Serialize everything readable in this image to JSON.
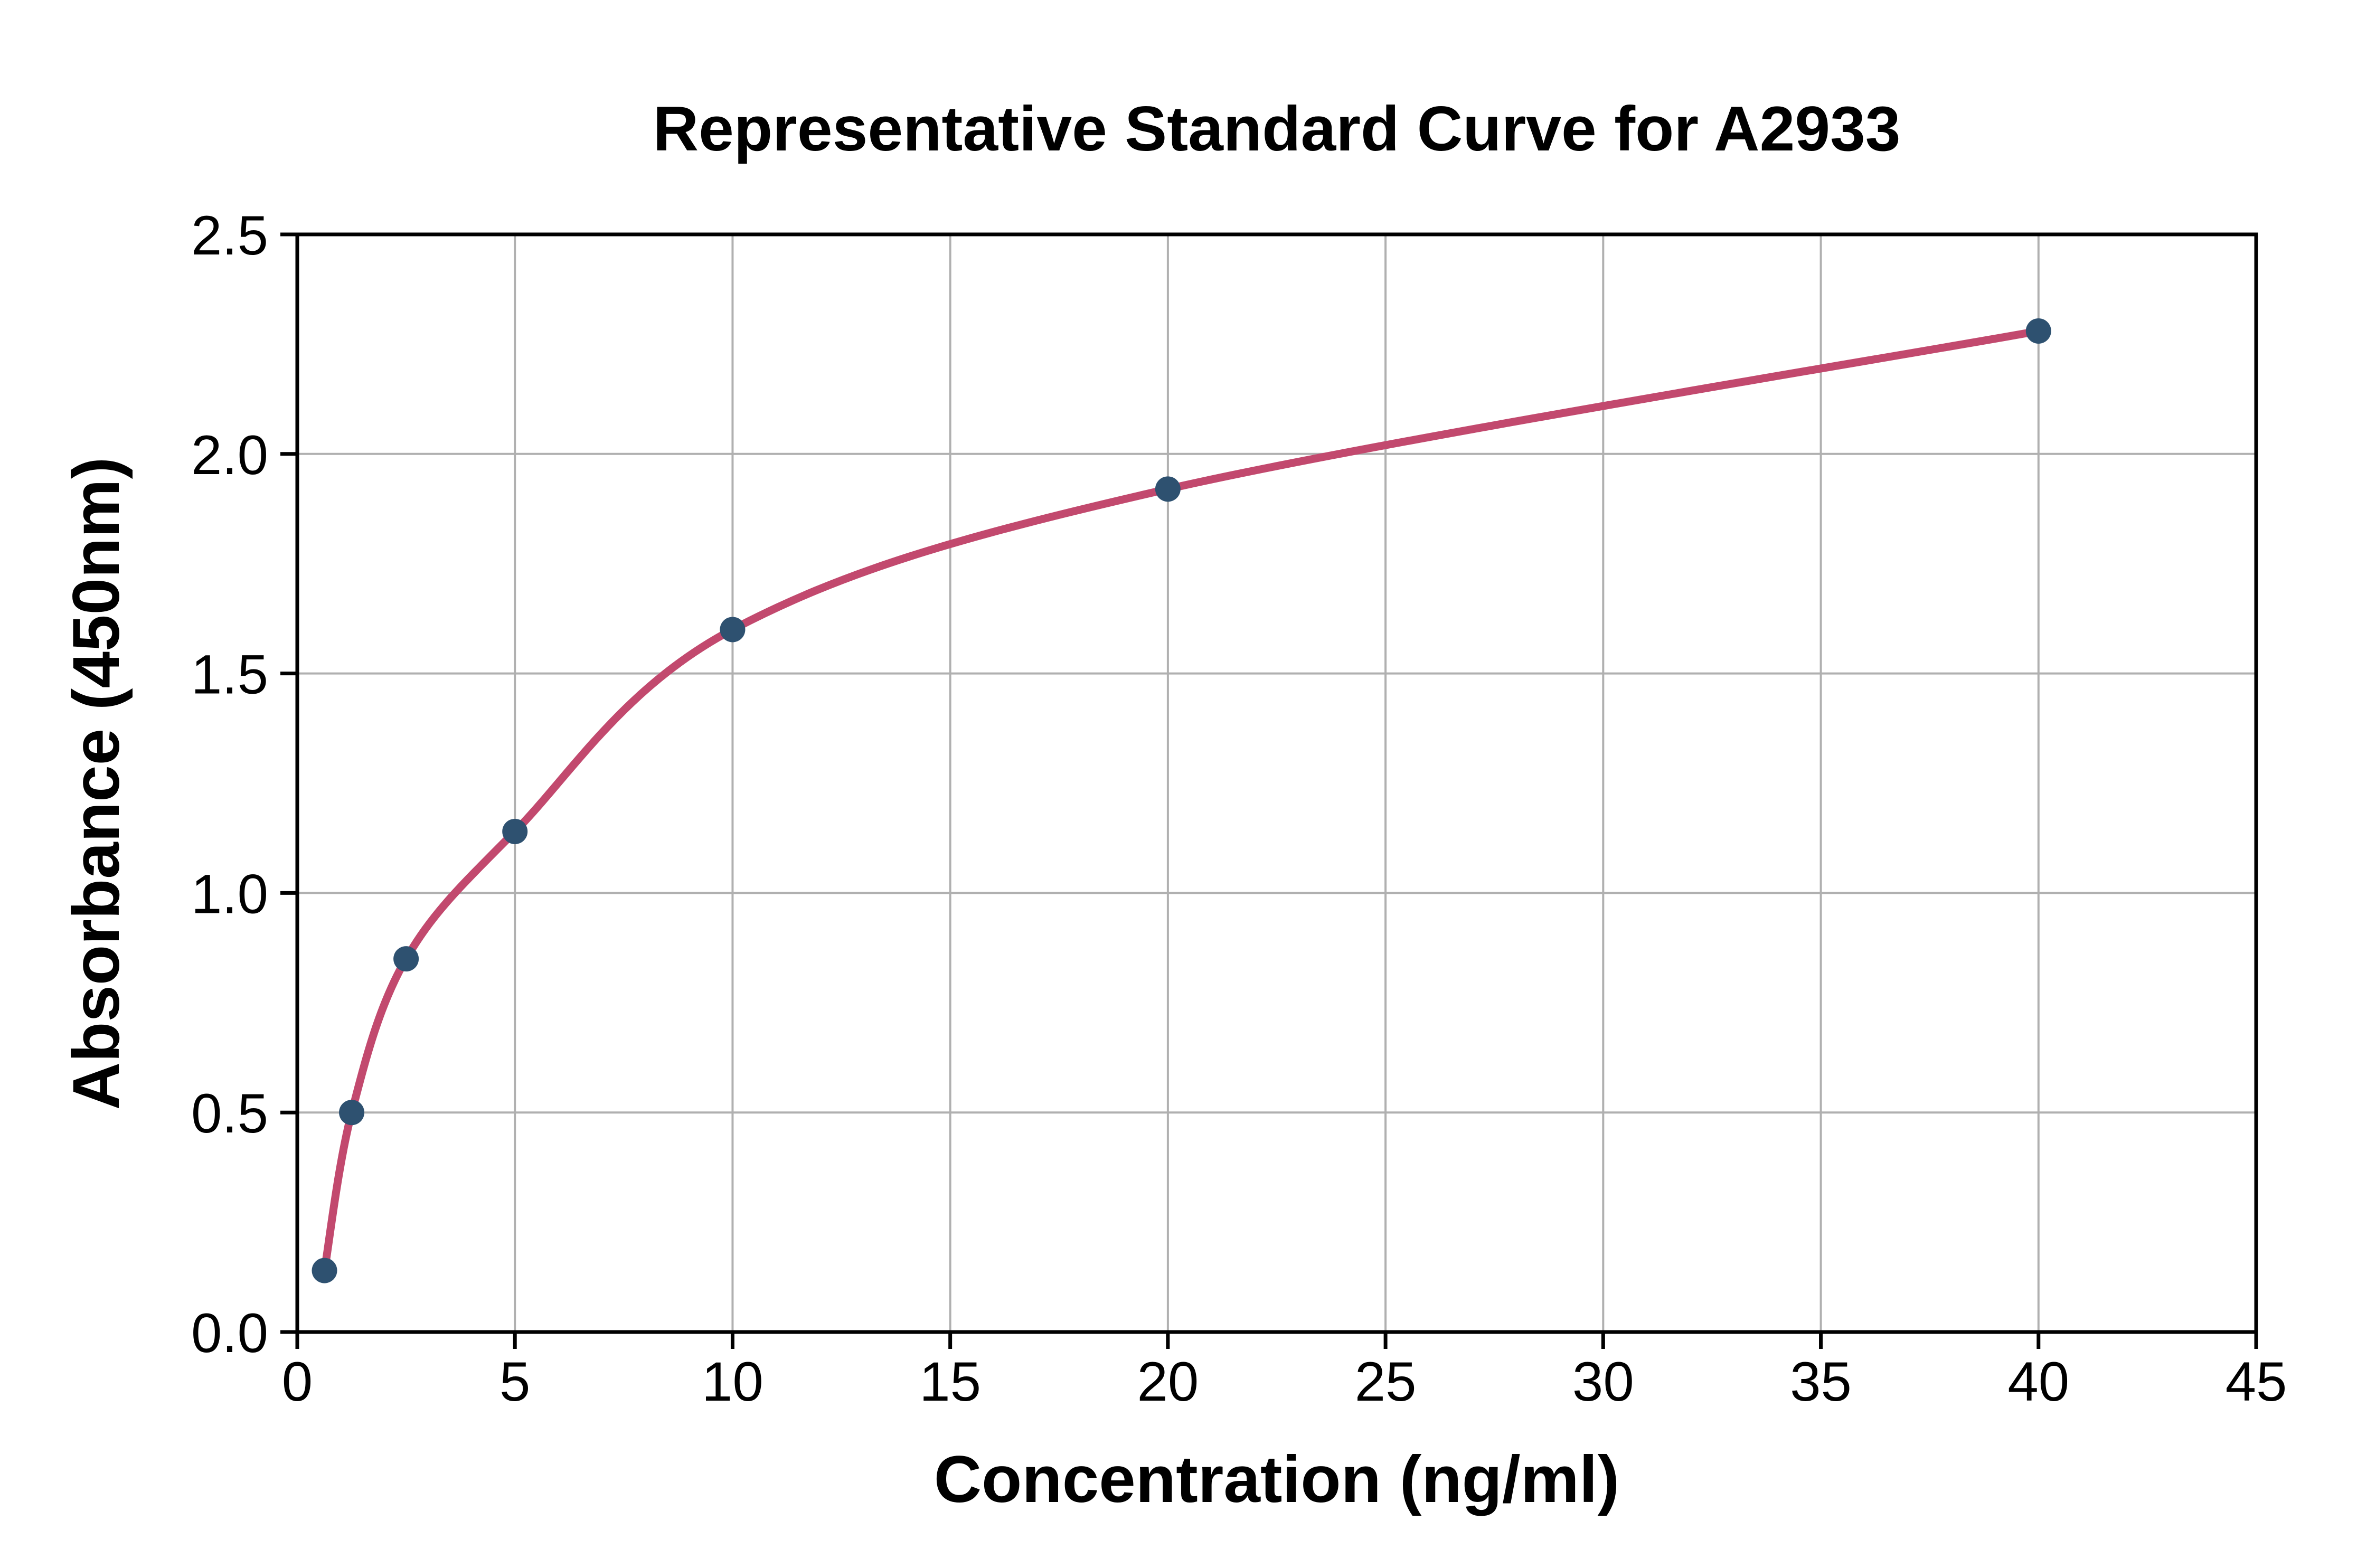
{
  "page": {
    "background_color": "#ffffff"
  },
  "chart_data": {
    "type": "scatter",
    "title": "Representative Standard Curve for A2933",
    "xlabel": "Concentration (ng/ml)",
    "ylabel": "Absorbance (450nm)",
    "x": [
      0.625,
      1.25,
      2.5,
      5,
      10,
      20,
      40
    ],
    "y": [
      0.14,
      0.5,
      0.85,
      1.14,
      1.6,
      1.92,
      2.28
    ],
    "series": [
      {
        "name": "standard-points",
        "role": "measured data points"
      },
      {
        "name": "fitted-curve",
        "role": "four-parameter-logistic fit through points"
      }
    ],
    "xlim": [
      0,
      45
    ],
    "ylim": [
      0,
      2.5
    ],
    "xticks": [
      0,
      5,
      10,
      15,
      20,
      25,
      30,
      35,
      40,
      45
    ],
    "yticks": [
      0.0,
      0.5,
      1.0,
      1.5,
      2.0,
      2.5
    ],
    "ytick_decimals": 1,
    "grid": true,
    "legend": "none",
    "colors": {
      "curve": "#c2496e",
      "points": "#2e5170",
      "grid": "#b0b0b0",
      "axis": "#000000",
      "background": "#ffffff"
    }
  }
}
